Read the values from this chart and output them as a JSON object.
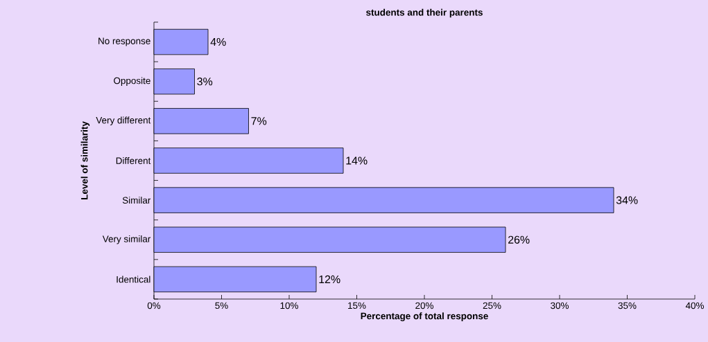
{
  "chart_data": {
    "type": "bar",
    "orientation": "horizontal",
    "title": "students and their parents",
    "xlabel": "Percentage of total response",
    "ylabel": "Level of similarity",
    "categories": [
      "No response",
      "Opposite",
      "Very different",
      "Different",
      "Similar",
      "Very similar",
      "Identical"
    ],
    "values": [
      4,
      3,
      7,
      14,
      34,
      26,
      12
    ],
    "value_labels": [
      "4%",
      "3%",
      "7%",
      "14%",
      "34%",
      "26%",
      "12%"
    ],
    "color": "#9999ff",
    "xlim": [
      0,
      40
    ],
    "xticks": [
      {
        "value": 0,
        "label": "0%"
      },
      {
        "value": 5,
        "label": "5%"
      },
      {
        "value": 10,
        "label": "10%"
      },
      {
        "value": 15,
        "label": "15%"
      },
      {
        "value": 20,
        "label": "20%"
      },
      {
        "value": 25,
        "label": "25%"
      },
      {
        "value": 30,
        "label": "30%"
      },
      {
        "value": 35,
        "label": "35%"
      },
      {
        "value": 40,
        "label": "40%"
      }
    ],
    "grid": false
  }
}
